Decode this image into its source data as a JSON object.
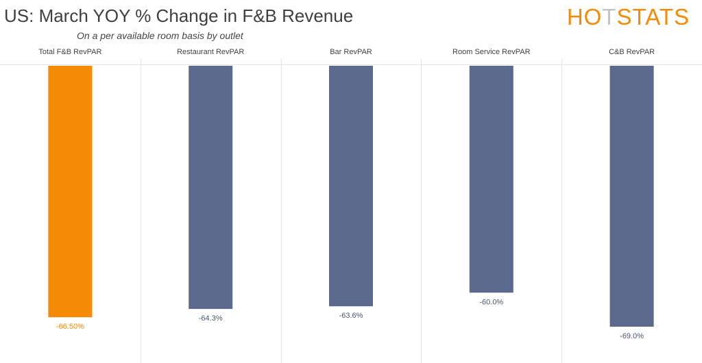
{
  "header": {
    "title": "US: March YOY % Change in F&B Revenue",
    "subtitle": "On a per available room basis by outlet",
    "logo": "HOTSTATS"
  },
  "colors": {
    "highlight": "#f58a07",
    "bar": "#5b6a8c",
    "divider": "#e3e3e3",
    "logo_orange": "#f58a07",
    "logo_gray": "#c4c4c4"
  },
  "chart_data": {
    "type": "bar",
    "title": "US: March YOY % Change in F&B Revenue",
    "subtitle": "On a per available room basis by outlet",
    "categories": [
      "Total F&B RevPAR",
      "Restaurant RevPAR",
      "Bar RevPAR",
      "Room Service RevPAR",
      "C&B RevPAR"
    ],
    "values": [
      -66.5,
      -64.3,
      -63.6,
      -60.0,
      -69.0
    ],
    "value_labels": [
      "-66.50%",
      "-64.3%",
      "-63.6%",
      "-60.0%",
      "-69.0%"
    ],
    "highlight_index": 0,
    "xlabel": "",
    "ylabel": "",
    "ylim": [
      -69,
      0
    ],
    "grid": false
  }
}
